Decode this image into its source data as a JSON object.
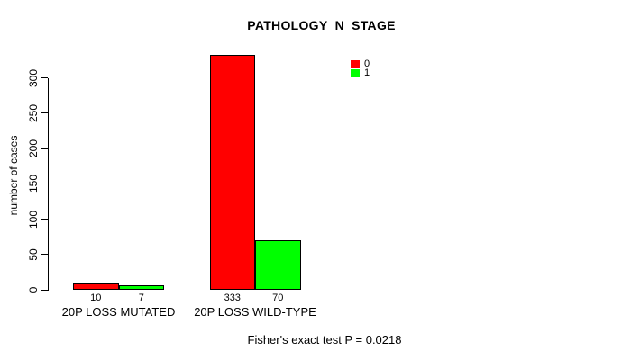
{
  "chart_data": {
    "type": "bar",
    "title": "PATHOLOGY_N_STAGE",
    "categories": [
      "20P LOSS MUTATED",
      "20P LOSS WILD-TYPE"
    ],
    "series": [
      {
        "name": "0",
        "color": "#ff0000",
        "values": [
          10,
          333
        ]
      },
      {
        "name": "1",
        "color": "#00ff00",
        "values": [
          7,
          70
        ]
      }
    ],
    "ylabel": "number of cases",
    "xlabel": "",
    "yticks": [
      0,
      50,
      100,
      150,
      200,
      250,
      300
    ],
    "ylim": [
      0,
      340
    ],
    "grid": false,
    "legend_position": "top-right",
    "bar_border_color": "#000000",
    "annotation": "Fisher's exact test P = 0.0218"
  }
}
